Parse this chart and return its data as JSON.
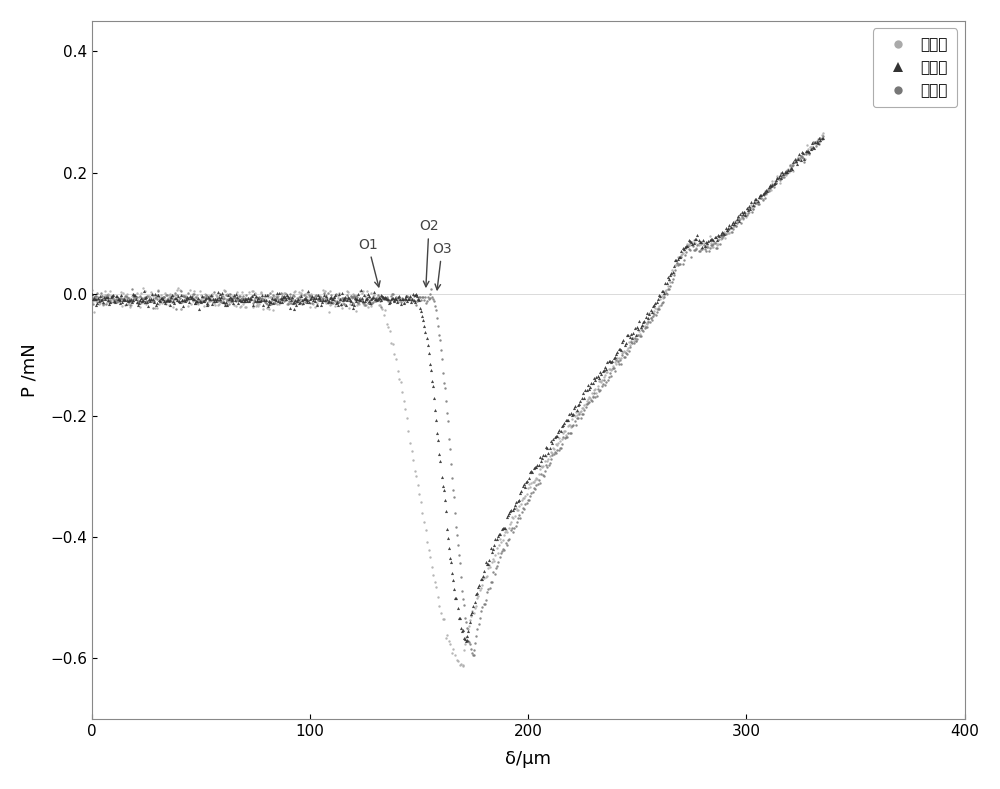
{
  "title": "",
  "xlabel": "δ/μm",
  "ylabel": "P /mN",
  "xlim": [
    0,
    400
  ],
  "ylim": [
    -0.7,
    0.45
  ],
  "yticks": [
    -0.6,
    -0.4,
    -0.2,
    0.0,
    0.2,
    0.4
  ],
  "xticks": [
    0,
    100,
    200,
    300,
    400
  ],
  "legend_labels": [
    "第一次",
    "第二次",
    "第三次"
  ],
  "background_color": "#ffffff",
  "fig_width": 10.0,
  "fig_height": 7.89,
  "curve1_color": "#aaaaaa",
  "curve2_color": "#333333",
  "curve3_color": "#777777",
  "noise_approach": 0.008,
  "noise_loading": 0.004,
  "noise_unload": 0.004
}
